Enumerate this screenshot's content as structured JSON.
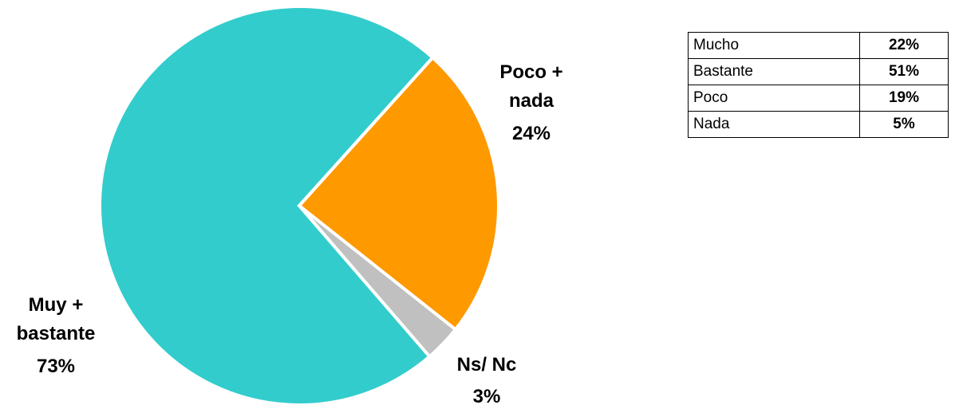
{
  "chart_data": {
    "type": "pie",
    "categories": [
      "Poco + nada",
      "Ns/ Nc",
      "Muy + bastante"
    ],
    "values": [
      24,
      3,
      73
    ],
    "value_labels": [
      "24%",
      "3%",
      "73%"
    ],
    "colors": [
      "#ff9900",
      "#c0c0c0",
      "#33cccc"
    ]
  },
  "table": {
    "rows": [
      [
        "Mucho",
        "22%"
      ],
      [
        "Bastante",
        "51%"
      ],
      [
        "Poco",
        "19%"
      ],
      [
        "Nada",
        "5%"
      ]
    ]
  }
}
